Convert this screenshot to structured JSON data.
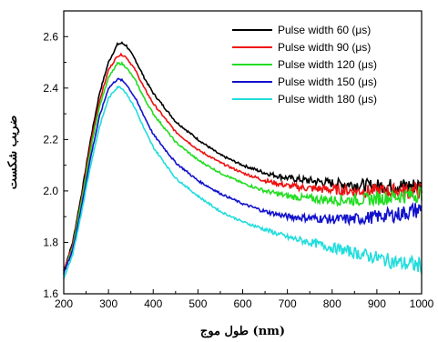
{
  "chart_data": {
    "type": "line",
    "xlabel": "طول موج (nm)",
    "ylabel": "ضریب شکست",
    "xlim": [
      200,
      1000
    ],
    "ylim": [
      1.6,
      2.7
    ],
    "xticks": [
      "200",
      "300",
      "400",
      "500",
      "600",
      "700",
      "800",
      "900",
      "1000"
    ],
    "yticks": [
      "1.6",
      "1.8",
      "2.0",
      "2.2",
      "2.4",
      "2.6"
    ],
    "legend_position": "top-right",
    "grid": false,
    "series": [
      {
        "name": "Pulse width 60 (μs)",
        "color": "#000000",
        "points": [
          [
            200,
            1.69
          ],
          [
            220,
            1.8
          ],
          [
            240,
            1.99
          ],
          [
            260,
            2.2
          ],
          [
            280,
            2.38
          ],
          [
            300,
            2.5
          ],
          [
            320,
            2.57
          ],
          [
            330,
            2.575
          ],
          [
            340,
            2.565
          ],
          [
            360,
            2.51
          ],
          [
            380,
            2.44
          ],
          [
            400,
            2.38
          ],
          [
            450,
            2.27
          ],
          [
            500,
            2.2
          ],
          [
            550,
            2.14
          ],
          [
            600,
            2.1
          ],
          [
            650,
            2.07
          ],
          [
            700,
            2.05
          ],
          [
            750,
            2.04
          ],
          [
            800,
            2.03
          ],
          [
            850,
            2.025
          ],
          [
            900,
            2.02
          ],
          [
            950,
            2.02
          ],
          [
            1000,
            2.02
          ]
        ]
      },
      {
        "name": "Pulse width 90 (μs)",
        "color": "#ee1111",
        "points": [
          [
            200,
            1.69
          ],
          [
            220,
            1.79
          ],
          [
            240,
            1.97
          ],
          [
            260,
            2.18
          ],
          [
            280,
            2.35
          ],
          [
            300,
            2.47
          ],
          [
            320,
            2.525
          ],
          [
            330,
            2.53
          ],
          [
            340,
            2.52
          ],
          [
            360,
            2.47
          ],
          [
            380,
            2.4
          ],
          [
            400,
            2.34
          ],
          [
            450,
            2.23
          ],
          [
            500,
            2.16
          ],
          [
            550,
            2.11
          ],
          [
            600,
            2.07
          ],
          [
            650,
            2.04
          ],
          [
            700,
            2.02
          ],
          [
            750,
            2.01
          ],
          [
            800,
            2.005
          ],
          [
            850,
            2.0
          ],
          [
            900,
            2.0
          ],
          [
            950,
            2.0
          ],
          [
            1000,
            2.0
          ]
        ]
      },
      {
        "name": "Pulse width 120 (μs)",
        "color": "#22dd22",
        "points": [
          [
            200,
            1.68
          ],
          [
            220,
            1.78
          ],
          [
            240,
            1.96
          ],
          [
            260,
            2.16
          ],
          [
            280,
            2.33
          ],
          [
            300,
            2.44
          ],
          [
            320,
            2.495
          ],
          [
            330,
            2.495
          ],
          [
            340,
            2.48
          ],
          [
            360,
            2.43
          ],
          [
            380,
            2.36
          ],
          [
            400,
            2.3
          ],
          [
            450,
            2.19
          ],
          [
            500,
            2.12
          ],
          [
            550,
            2.07
          ],
          [
            600,
            2.03
          ],
          [
            650,
            2.0
          ],
          [
            700,
            1.98
          ],
          [
            750,
            1.97
          ],
          [
            800,
            1.965
          ],
          [
            850,
            1.965
          ],
          [
            900,
            1.97
          ],
          [
            950,
            1.98
          ],
          [
            1000,
            1.99
          ]
        ]
      },
      {
        "name": "Pulse width 150 (μs)",
        "color": "#1111cc",
        "points": [
          [
            200,
            1.68
          ],
          [
            220,
            1.77
          ],
          [
            240,
            1.94
          ],
          [
            260,
            2.13
          ],
          [
            280,
            2.29
          ],
          [
            300,
            2.4
          ],
          [
            320,
            2.435
          ],
          [
            330,
            2.43
          ],
          [
            340,
            2.415
          ],
          [
            360,
            2.36
          ],
          [
            380,
            2.29
          ],
          [
            400,
            2.22
          ],
          [
            450,
            2.11
          ],
          [
            500,
            2.04
          ],
          [
            550,
            1.99
          ],
          [
            600,
            1.95
          ],
          [
            650,
            1.92
          ],
          [
            700,
            1.9
          ],
          [
            750,
            1.895
          ],
          [
            800,
            1.89
          ],
          [
            850,
            1.89
          ],
          [
            900,
            1.9
          ],
          [
            950,
            1.91
          ],
          [
            1000,
            1.93
          ]
        ]
      },
      {
        "name": "Pulse width 180 (μs)",
        "color": "#22dddd",
        "points": [
          [
            200,
            1.66
          ],
          [
            220,
            1.75
          ],
          [
            240,
            1.92
          ],
          [
            260,
            2.1
          ],
          [
            280,
            2.25
          ],
          [
            300,
            2.36
          ],
          [
            320,
            2.405
          ],
          [
            330,
            2.4
          ],
          [
            340,
            2.38
          ],
          [
            360,
            2.32
          ],
          [
            380,
            2.24
          ],
          [
            400,
            2.17
          ],
          [
            450,
            2.05
          ],
          [
            500,
            1.98
          ],
          [
            550,
            1.92
          ],
          [
            600,
            1.88
          ],
          [
            650,
            1.85
          ],
          [
            700,
            1.82
          ],
          [
            750,
            1.8
          ],
          [
            800,
            1.78
          ],
          [
            850,
            1.76
          ],
          [
            900,
            1.74
          ],
          [
            950,
            1.72
          ],
          [
            1000,
            1.71
          ]
        ]
      }
    ]
  }
}
